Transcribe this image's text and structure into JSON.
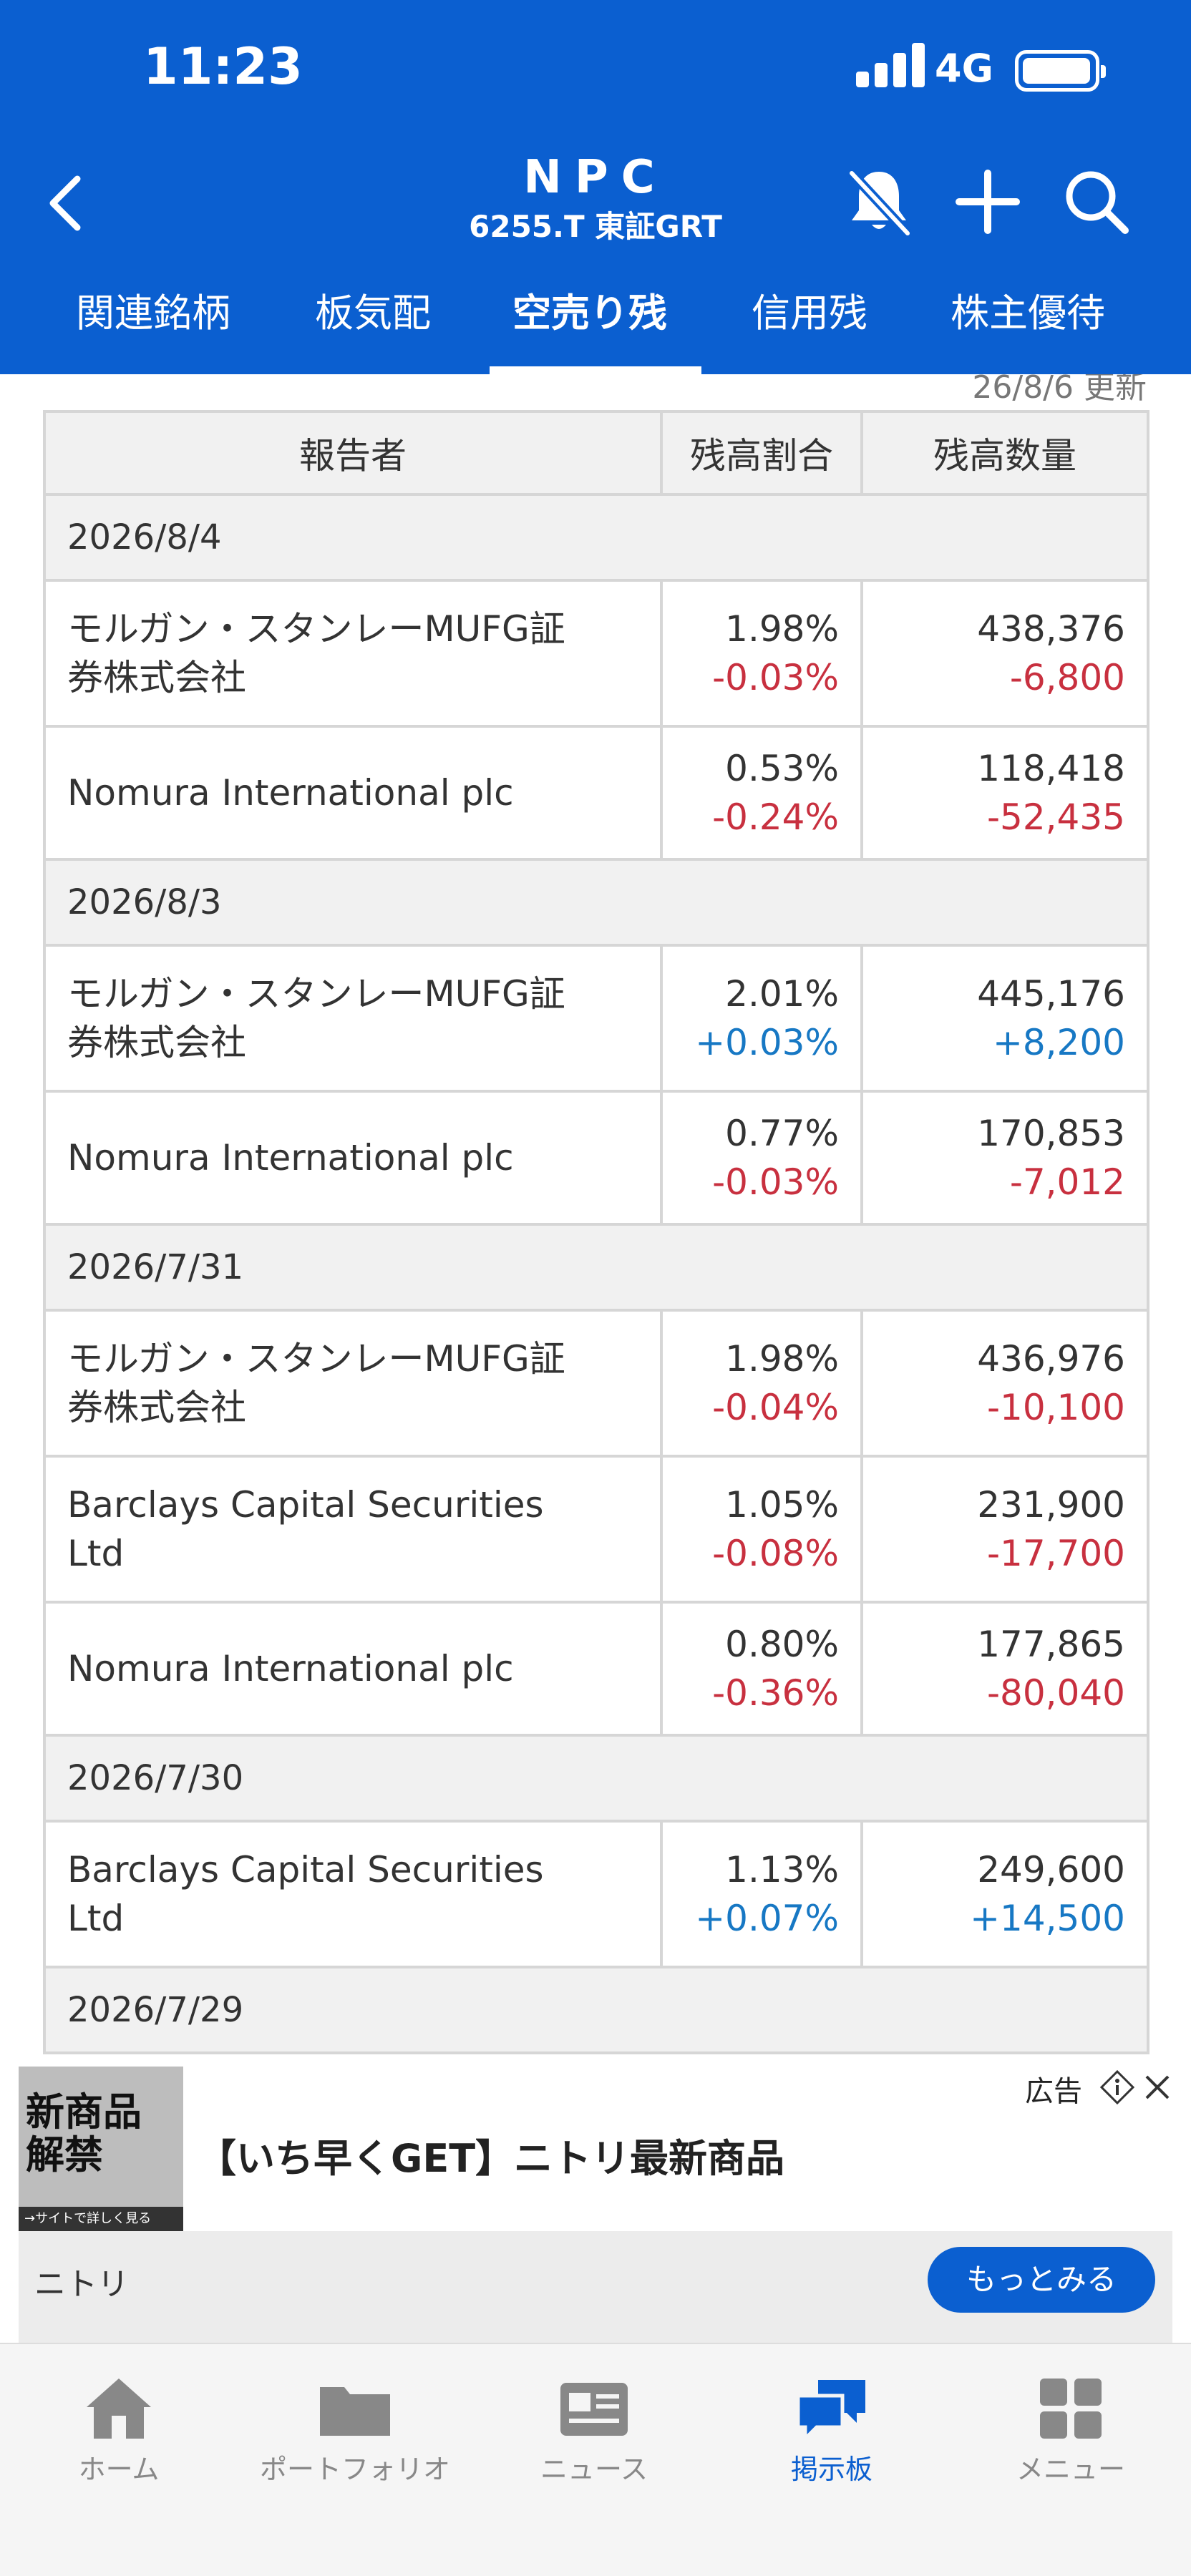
{
  "status_bar": {
    "time": "11:23",
    "network": "4G"
  },
  "header": {
    "title": "NPC",
    "subtitle": "6255.T 東証GRT",
    "icons": [
      "back-icon",
      "bell-off-icon",
      "plus-icon",
      "search-icon"
    ]
  },
  "tabs": [
    {
      "label": "関連銘柄"
    },
    {
      "label": "板気配"
    },
    {
      "label": "空売り残",
      "active": true
    },
    {
      "label": "信用残"
    },
    {
      "label": "株主優待"
    }
  ],
  "updated_text": "26/8/6 更新",
  "table": {
    "headers": {
      "reporter": "報告者",
      "ratio": "残高割合",
      "quantity": "残高数量"
    },
    "groups": [
      {
        "date": "2026/8/4",
        "rows": [
          {
            "reporter_line1": "モルガン・スタンレーMUFG証",
            "reporter_line2": "券株式会社",
            "ratio": "1.98%",
            "ratio_change": "-0.03%",
            "quantity": "438,376",
            "quantity_change": "-6,800"
          },
          {
            "reporter_line1": "Nomura International plc",
            "reporter_line2": "",
            "ratio": "0.53%",
            "ratio_change": "-0.24%",
            "quantity": "118,418",
            "quantity_change": "-52,435"
          }
        ]
      },
      {
        "date": "2026/8/3",
        "rows": [
          {
            "reporter_line1": "モルガン・スタンレーMUFG証",
            "reporter_line2": "券株式会社",
            "ratio": "2.01%",
            "ratio_change": "+0.03%",
            "quantity": "445,176",
            "quantity_change": "+8,200"
          },
          {
            "reporter_line1": "Nomura International plc",
            "reporter_line2": "",
            "ratio": "0.77%",
            "ratio_change": "-0.03%",
            "quantity": "170,853",
            "quantity_change": "-7,012"
          }
        ]
      },
      {
        "date": "2026/7/31",
        "rows": [
          {
            "reporter_line1": "モルガン・スタンレーMUFG証",
            "reporter_line2": "券株式会社",
            "ratio": "1.98%",
            "ratio_change": "-0.04%",
            "quantity": "436,976",
            "quantity_change": "-10,100"
          },
          {
            "reporter_line1": "Barclays Capital Securities",
            "reporter_line2": "Ltd",
            "ratio": "1.05%",
            "ratio_change": "-0.08%",
            "quantity": "231,900",
            "quantity_change": "-17,700"
          },
          {
            "reporter_line1": "Nomura International plc",
            "reporter_line2": "",
            "ratio": "0.80%",
            "ratio_change": "-0.36%",
            "quantity": "177,865",
            "quantity_change": "-80,040"
          }
        ]
      },
      {
        "date": "2026/7/30",
        "rows": [
          {
            "reporter_line1": "Barclays Capital Securities",
            "reporter_line2": "Ltd",
            "ratio": "1.13%",
            "ratio_change": "+0.07%",
            "quantity": "249,600",
            "quantity_change": "+14,500"
          }
        ]
      },
      {
        "date": "2026/7/29",
        "rows": []
      }
    ]
  },
  "ad": {
    "label": "広告",
    "thumb_text_line1": "新商品",
    "thumb_text_line2": "解禁",
    "thumb_footer": "→サイトで詳しく見る",
    "headline": "【いち早くGET】ニトリ最新商品",
    "brand": "ニトリ",
    "cta": "もっとみる"
  },
  "bottom_nav": [
    {
      "label": "ホーム",
      "icon": "home-icon"
    },
    {
      "label": "ポートフォリオ",
      "icon": "folder-icon"
    },
    {
      "label": "ニュース",
      "icon": "news-icon"
    },
    {
      "label": "掲示板",
      "icon": "chat-icon",
      "active": true
    },
    {
      "label": "メニュー",
      "icon": "grid-menu-icon"
    }
  ],
  "colors": {
    "brand": "#0b5fd0",
    "negative": "#c8303f",
    "positive": "#1778c4"
  }
}
